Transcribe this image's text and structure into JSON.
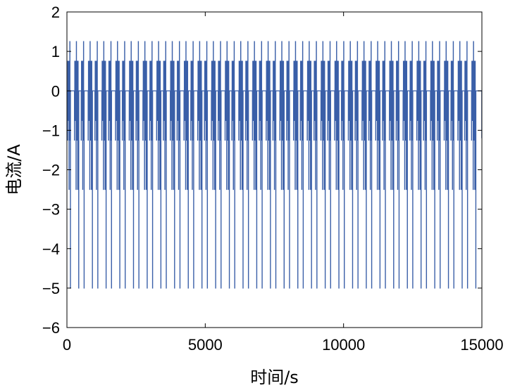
{
  "chart_data": {
    "type": "line",
    "title": "",
    "xlabel": "时间/s",
    "ylabel": "电流/A",
    "xlim": [
      0,
      15000
    ],
    "ylim": [
      -6,
      2
    ],
    "x_ticks": [
      0,
      5000,
      10000,
      15000
    ],
    "x_tick_labels": [
      "0",
      "5000",
      "10000",
      "15000"
    ],
    "y_ticks": [
      2,
      1,
      0,
      -1,
      -2,
      -3,
      -4,
      -5,
      -6
    ],
    "y_tick_labels": [
      "2",
      "1",
      "0",
      "−1",
      "−2",
      "−3",
      "−4",
      "−5",
      "−6"
    ],
    "grid": false,
    "series_color": "#3a5fa8",
    "series": [
      {
        "cycle_count": 30,
        "cycle_period_s": 495,
        "baseline_a": 0,
        "levels_a": [
          1.25,
          0.75,
          -0.75,
          -1.25,
          -2.5,
          -5.0
        ],
        "end_value_a": -1.2
      }
    ]
  }
}
